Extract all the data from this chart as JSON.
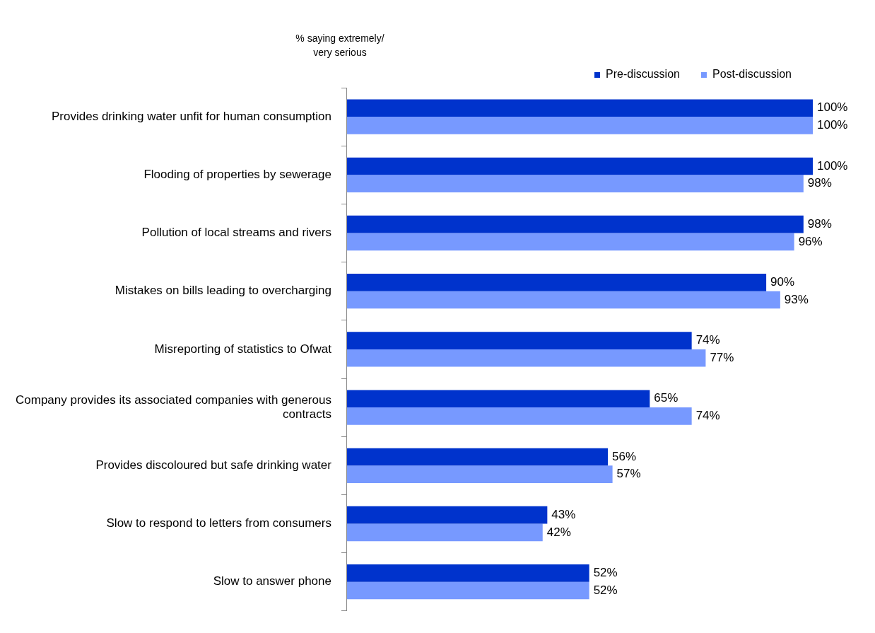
{
  "chart_data": {
    "type": "bar",
    "orientation": "horizontal",
    "title": "% saying extremely/ very serious",
    "categories": [
      "Provides drinking water unfit for human consumption",
      "Flooding of properties by sewerage",
      "Pollution of local streams and rivers",
      "Mistakes on bills leading to overcharging",
      "Misreporting of statistics to Ofwat",
      "Company provides its associated companies with generous contracts",
      "Provides discoloured but safe drinking water",
      "Slow to respond to letters from consumers",
      "Slow to answer phone"
    ],
    "series": [
      {
        "name": "Pre-discussion",
        "color": "#0033cc",
        "values": [
          100,
          100,
          98,
          90,
          74,
          65,
          56,
          43,
          52
        ],
        "value_labels": [
          "100%",
          "100%",
          "98%",
          "90%",
          "74%",
          "65%",
          "56%",
          "43%",
          "52%"
        ]
      },
      {
        "name": "Post-discussion",
        "color": "#7799ff",
        "values": [
          100,
          98,
          96,
          93,
          77,
          74,
          57,
          42,
          52
        ],
        "value_labels": [
          "100%",
          "98%",
          "96%",
          "93%",
          "77%",
          "74%",
          "57%",
          "42%",
          "52%"
        ]
      }
    ],
    "legend": "top right",
    "grid": false
  }
}
